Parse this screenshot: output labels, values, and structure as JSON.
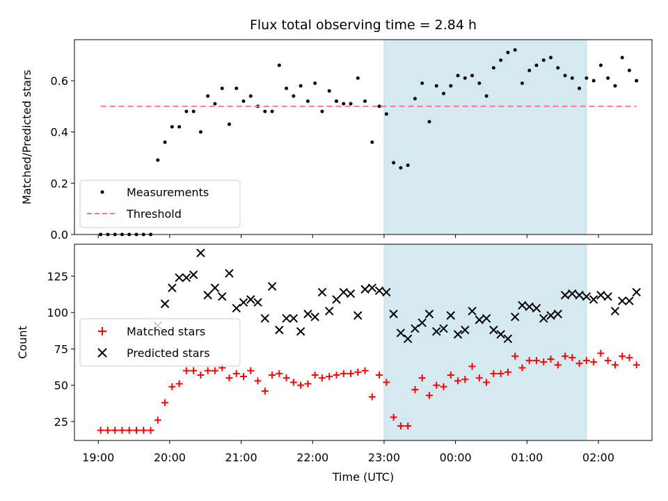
{
  "chart_data": [
    {
      "type": "scatter",
      "title": "Flux total observing time = 2.84 h",
      "ylabel": "Matched/Predicted stars",
      "ylim": [
        0,
        0.76
      ],
      "yticks": [
        0,
        0.2,
        0.4,
        0.6
      ],
      "ytick_labels": [
        "0.0",
        "0.2",
        "0.4",
        "0.6"
      ],
      "highlight_span": [
        "23:00",
        "01:50"
      ],
      "highlight_color": "#d4eaf0",
      "legend_position": "lower left",
      "series": [
        {
          "name": "Measurements",
          "marker": "dot",
          "color": "#000000",
          "x": [
            "19:02",
            "19:08",
            "19:14",
            "19:20",
            "19:26",
            "19:32",
            "19:38",
            "19:44",
            "19:50",
            "19:56",
            "20:02",
            "20:08",
            "20:14",
            "20:20",
            "20:26",
            "20:32",
            "20:38",
            "20:44",
            "20:50",
            "20:56",
            "21:02",
            "21:08",
            "21:14",
            "21:20",
            "21:26",
            "21:32",
            "21:38",
            "21:44",
            "21:50",
            "21:56",
            "22:02",
            "22:08",
            "22:14",
            "22:20",
            "22:26",
            "22:32",
            "22:38",
            "22:44",
            "22:50",
            "22:56",
            "23:02",
            "23:08",
            "23:14",
            "23:20",
            "23:26",
            "23:32",
            "23:38",
            "23:44",
            "23:50",
            "23:56",
            "00:02",
            "00:08",
            "00:14",
            "00:20",
            "00:26",
            "00:32",
            "00:38",
            "00:44",
            "00:50",
            "00:56",
            "01:02",
            "01:08",
            "01:14",
            "01:20",
            "01:26",
            "01:32",
            "01:38",
            "01:44",
            "01:50",
            "01:56",
            "02:02",
            "02:08",
            "02:14",
            "02:20",
            "02:26",
            "02:32"
          ],
          "y": [
            0.0,
            0.0,
            0.0,
            0.0,
            0.0,
            0.0,
            0.0,
            0.0,
            0.29,
            0.36,
            0.42,
            0.42,
            0.48,
            0.48,
            0.4,
            0.54,
            0.51,
            0.57,
            0.43,
            0.57,
            0.52,
            0.54,
            0.5,
            0.48,
            0.48,
            0.66,
            0.57,
            0.54,
            0.58,
            0.52,
            0.59,
            0.48,
            0.56,
            0.52,
            0.51,
            0.51,
            0.61,
            0.52,
            0.36,
            0.5,
            0.47,
            0.28,
            0.26,
            0.27,
            0.53,
            0.59,
            0.44,
            0.58,
            0.55,
            0.58,
            0.62,
            0.61,
            0.62,
            0.59,
            0.54,
            0.65,
            0.68,
            0.71,
            0.72,
            0.59,
            0.64,
            0.66,
            0.68,
            0.69,
            0.65,
            0.62,
            0.61,
            0.57,
            0.61,
            0.6,
            0.66,
            0.61,
            0.58,
            0.69,
            0.64,
            0.6
          ]
        },
        {
          "name": "Threshold",
          "style": "dashed",
          "color": "#ff7575",
          "x": [
            "19:02",
            "02:32"
          ],
          "y": [
            0.5,
            0.5
          ]
        }
      ]
    },
    {
      "type": "scatter",
      "xlabel": "Time (UTC)",
      "ylabel": "Count",
      "ylim": [
        12,
        147
      ],
      "yticks": [
        25,
        50,
        75,
        100,
        125
      ],
      "ytick_labels": [
        "25",
        "50",
        "75",
        "100",
        "125"
      ],
      "xticks": [
        "19:00",
        "20:00",
        "21:00",
        "22:00",
        "23:00",
        "00:00",
        "01:00",
        "02:00"
      ],
      "xtick_labels": [
        "19:00",
        "20:00",
        "21:00",
        "22:00",
        "23:00",
        "00:00",
        "01:00",
        "02:00"
      ],
      "highlight_span": [
        "23:00",
        "01:50"
      ],
      "highlight_color": "#d4eaf0",
      "legend_position": "center left",
      "series": [
        {
          "name": "Matched stars",
          "marker": "plus",
          "color": "#ff0000",
          "x": [
            "19:02",
            "19:08",
            "19:14",
            "19:20",
            "19:26",
            "19:32",
            "19:38",
            "19:44",
            "19:50",
            "19:56",
            "20:02",
            "20:08",
            "20:14",
            "20:20",
            "20:26",
            "20:32",
            "20:38",
            "20:44",
            "20:50",
            "20:56",
            "21:02",
            "21:08",
            "21:14",
            "21:20",
            "21:26",
            "21:32",
            "21:38",
            "21:44",
            "21:50",
            "21:56",
            "22:02",
            "22:08",
            "22:14",
            "22:20",
            "22:26",
            "22:32",
            "22:38",
            "22:44",
            "22:50",
            "22:56",
            "23:02",
            "23:08",
            "23:14",
            "23:20",
            "23:26",
            "23:32",
            "23:38",
            "23:44",
            "23:50",
            "23:56",
            "00:02",
            "00:08",
            "00:14",
            "00:20",
            "00:26",
            "00:32",
            "00:38",
            "00:44",
            "00:50",
            "00:56",
            "01:02",
            "01:08",
            "01:14",
            "01:20",
            "01:26",
            "01:32",
            "01:38",
            "01:44",
            "01:50",
            "01:56",
            "02:02",
            "02:08",
            "02:14",
            "02:20",
            "02:26",
            "02:32"
          ],
          "y": [
            19,
            19,
            19,
            19,
            19,
            19,
            19,
            19,
            26,
            38,
            49,
            51,
            60,
            60,
            57,
            60,
            60,
            62,
            55,
            58,
            56,
            60,
            53,
            46,
            57,
            58,
            55,
            52,
            50,
            51,
            57,
            55,
            56,
            57,
            58,
            58,
            59,
            60,
            42,
            57,
            52,
            28,
            22,
            22,
            47,
            55,
            43,
            50,
            49,
            57,
            53,
            54,
            63,
            55,
            52,
            58,
            58,
            59,
            70,
            62,
            67,
            67,
            66,
            68,
            64,
            70,
            69,
            65,
            67,
            66,
            72,
            67,
            64,
            70,
            69,
            64
          ]
        },
        {
          "name": "Predicted stars",
          "marker": "x",
          "color": "#000000",
          "x": [
            "19:02",
            "19:08",
            "19:14",
            "19:20",
            "19:26",
            "19:32",
            "19:38",
            "19:44",
            "19:50",
            "19:56",
            "20:02",
            "20:08",
            "20:14",
            "20:20",
            "20:26",
            "20:32",
            "20:38",
            "20:44",
            "20:50",
            "20:56",
            "21:02",
            "21:08",
            "21:14",
            "21:20",
            "21:26",
            "21:32",
            "21:38",
            "21:44",
            "21:50",
            "21:56",
            "22:02",
            "22:08",
            "22:14",
            "22:20",
            "22:26",
            "22:32",
            "22:38",
            "22:44",
            "22:50",
            "22:56",
            "23:02",
            "23:08",
            "23:14",
            "23:20",
            "23:26",
            "23:32",
            "23:38",
            "23:44",
            "23:50",
            "23:56",
            "00:02",
            "00:08",
            "00:14",
            "00:20",
            "00:26",
            "00:32",
            "00:38",
            "00:44",
            "00:50",
            "00:56",
            "01:02",
            "01:08",
            "01:14",
            "01:20",
            "01:26",
            "01:32",
            "01:38",
            "01:44",
            "01:50",
            "01:56",
            "02:02",
            "02:08",
            "02:14",
            "02:20",
            "02:26",
            "02:32"
          ],
          "y": [
            null,
            null,
            null,
            null,
            null,
            null,
            null,
            null,
            91,
            106,
            117,
            124,
            124,
            126,
            141,
            112,
            117,
            111,
            127,
            103,
            107,
            109,
            107,
            96,
            118,
            88,
            96,
            96,
            87,
            99,
            97,
            114,
            101,
            109,
            114,
            113,
            98,
            116,
            117,
            115,
            114,
            99,
            86,
            82,
            89,
            93,
            99,
            87,
            89,
            98,
            85,
            88,
            101,
            95,
            96,
            88,
            85,
            82,
            97,
            105,
            104,
            103,
            96,
            98,
            99,
            112,
            113,
            112,
            111,
            109,
            112,
            111,
            101,
            108,
            108,
            114
          ]
        }
      ]
    }
  ]
}
